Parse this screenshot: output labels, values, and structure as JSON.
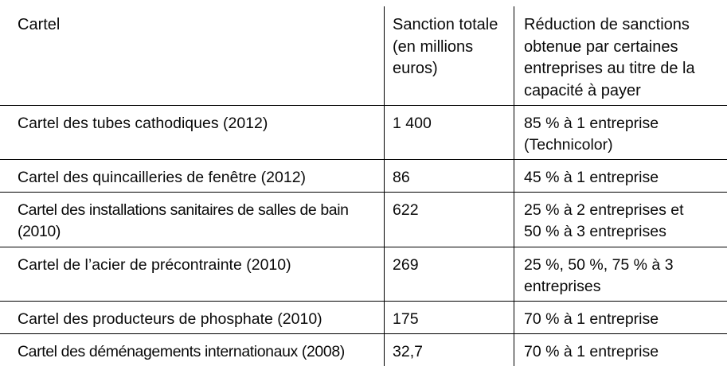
{
  "table": {
    "columns": [
      {
        "label": "Cartel"
      },
      {
        "label": "Sanction totale\n(en millions\neuros)"
      },
      {
        "label": "Réduction de sanctions\nobtenue par certaines\nentreprises au titre de la\ncapacité à payer"
      }
    ],
    "rows": [
      {
        "cartel": "Cartel des tubes cathodiques (2012)",
        "sanction": "1 400",
        "reduction": "85 % à 1 entreprise\n(Technicolor)"
      },
      {
        "cartel": "Cartel des quincailleries de fenêtre (2012)",
        "sanction": "86",
        "reduction": "45 % à 1 entreprise"
      },
      {
        "cartel": "Cartel des installations sanitaires de salles de bain\n(2010)",
        "sanction": "622",
        "reduction": "25 % à 2 entreprises et\n50 % à 3 entreprises"
      },
      {
        "cartel": "Cartel de l’acier de précontrainte (2010)",
        "sanction": "269",
        "reduction": "25 %, 50 %, 75 % à 3\nentreprises"
      },
      {
        "cartel": "Cartel des producteurs de phosphate (2010)",
        "sanction": "175",
        "reduction": "70 % à 1 entreprise"
      },
      {
        "cartel": "Cartel des déménagements internationaux (2008)",
        "sanction": "32,7",
        "reduction": "70 % à 1 entreprise"
      }
    ]
  }
}
